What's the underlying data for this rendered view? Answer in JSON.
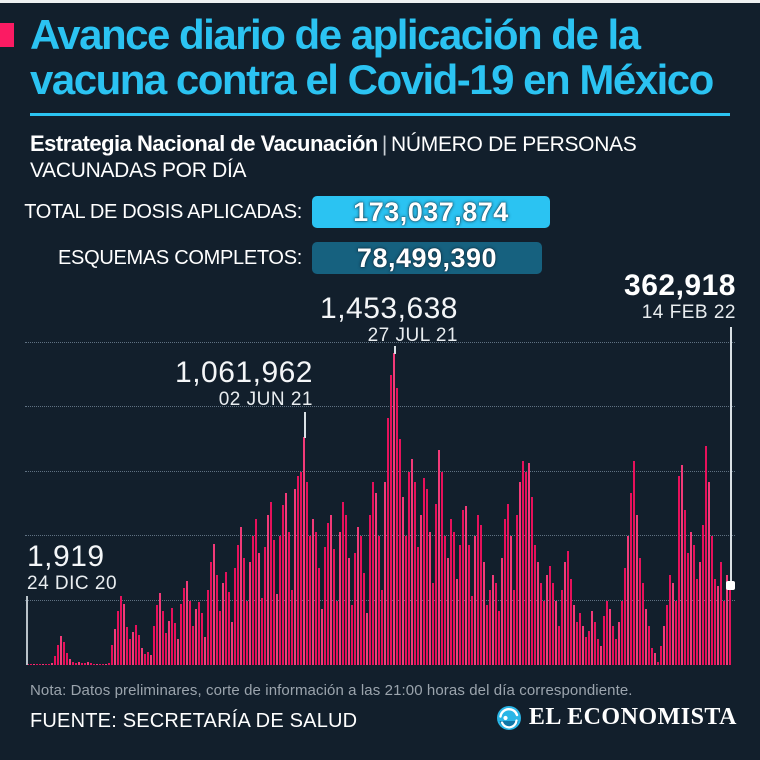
{
  "colors": {
    "background": "#121f2c",
    "title_cyan": "#2bc3f2",
    "accent_pink": "#fb1b63",
    "bar_pink": "#e6115b",
    "badge_total_bg": "#2bc3f2",
    "badge_complete_bg": "#16617f",
    "note_gray": "#9ba4ad"
  },
  "header": {
    "title_line1": "Avance diario de aplicación de la",
    "title_line2": "vacuna contra el Covid-19 en México",
    "strategy_label": "Estrategia Nacional de Vacunación",
    "separator": "|",
    "subtitle_line1": "NÚMERO DE PERSONAS",
    "subtitle_line2": "VACUNADAS POR DÍA"
  },
  "stats": {
    "total_label": "TOTAL DE DOSIS APLICADAS:",
    "total_value": "173,037,874",
    "complete_label": "ESQUEMAS COMPLETOS:",
    "complete_value": "78,499,390"
  },
  "footer": {
    "note": "Nota: Datos preliminares, corte de información a las 21:00 horas del día correspondiente.",
    "source": "FUENTE: SECRETARÍA DE SALUD",
    "brand": "EL ECONOMISTA"
  },
  "chart_data": {
    "type": "bar",
    "title": "Número de personas vacunadas por día en México",
    "xlabel": "",
    "ylabel": "Personas vacunadas por día",
    "x_range": [
      "24 DIC 20",
      "14 FEB 22"
    ],
    "ylim": [
      0,
      1500000
    ],
    "grid": "dotted-horizontal",
    "gridline_values": [
      300000,
      600000,
      900000,
      1200000,
      1500000
    ],
    "annotations": {
      "first": {
        "value": 1919,
        "value_label": "1,919",
        "date": "24 DIC 20"
      },
      "peak_jun": {
        "value": 1061962,
        "value_label": "1,061,962",
        "date": "02 JUN 21"
      },
      "peak_jul": {
        "value": 1453638,
        "value_label": "1,453,638",
        "date": "27 JUL 21"
      },
      "last": {
        "value": 362918,
        "value_label": "362,918",
        "date": "14 FEB 22"
      }
    },
    "bars": [
      1919,
      3000,
      5000,
      4000,
      6000,
      5000,
      4000,
      6000,
      8000,
      40000,
      95000,
      135000,
      105000,
      55000,
      28000,
      15000,
      10000,
      14000,
      10000,
      8000,
      12000,
      9000,
      7000,
      6000,
      5000,
      4000,
      6000,
      10000,
      95000,
      170000,
      250000,
      320000,
      285000,
      175000,
      120000,
      155000,
      185000,
      140000,
      80000,
      50000,
      62000,
      45000,
      180000,
      280000,
      335000,
      250000,
      150000,
      205000,
      265000,
      195000,
      120000,
      285000,
      360000,
      390000,
      300000,
      180000,
      260000,
      295000,
      240000,
      130000,
      350000,
      480000,
      565000,
      420000,
      250000,
      380000,
      435000,
      340000,
      200000,
      450000,
      560000,
      640000,
      500000,
      300000,
      480000,
      600000,
      680000,
      520000,
      310000,
      550000,
      700000,
      760000,
      580000,
      330000,
      600000,
      745000,
      800000,
      620000,
      350000,
      820000,
      880000,
      900000,
      1061962,
      850000,
      600000,
      680000,
      620000,
      450000,
      260000,
      550000,
      660000,
      700000,
      540000,
      300000,
      620000,
      760000,
      700000,
      500000,
      280000,
      520000,
      640000,
      600000,
      430000,
      240000,
      700000,
      850000,
      800000,
      600000,
      350000,
      850000,
      1150000,
      1350000,
      1453638,
      1290000,
      1050000,
      780000,
      600000,
      900000,
      960000,
      850000,
      550000,
      700000,
      870000,
      820000,
      620000,
      380000,
      750000,
      1000000,
      900000,
      600000,
      500000,
      680000,
      620000,
      400000,
      560000,
      720000,
      740000,
      560000,
      320000,
      600000,
      700000,
      650000,
      480000,
      280000,
      350000,
      420000,
      380000,
      250000,
      500000,
      680000,
      750000,
      600000,
      350000,
      700000,
      850000,
      950000,
      900000,
      940000,
      780000,
      560000,
      480000,
      380000,
      300000,
      420000,
      460000,
      380000,
      300000,
      180000,
      350000,
      480000,
      530000,
      400000,
      280000,
      200000,
      240000,
      180000,
      130000,
      160000,
      250000,
      200000,
      120000,
      90000,
      230000,
      300000,
      260000,
      180000,
      120000,
      200000,
      300000,
      450000,
      600000,
      800000,
      950000,
      700000,
      500000,
      380000,
      260000,
      180000,
      80000,
      55000,
      15000,
      90000,
      180000,
      280000,
      420000,
      380000,
      300000,
      880000,
      930000,
      720000,
      520000,
      620000,
      560000,
      400000,
      480000,
      650000,
      1020000,
      850000,
      600000,
      400000,
      370000,
      480000,
      300000,
      420000,
      362918
    ]
  }
}
